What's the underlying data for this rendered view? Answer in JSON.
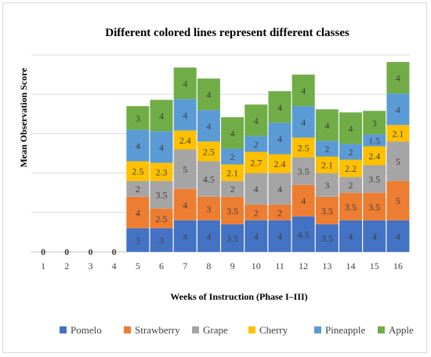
{
  "chart_data": {
    "type": "bar",
    "stacked": true,
    "title": "Different colored lines represent different classes",
    "xlabel": "Weeks of Instruction (Phase I–III)",
    "ylabel": "Mean Observation Score",
    "categories": [
      "1",
      "2",
      "3",
      "4",
      "5",
      "6",
      "7",
      "8",
      "9",
      "10",
      "11",
      "12",
      "13",
      "14",
      "15",
      "16"
    ],
    "ylim": [
      0,
      25
    ],
    "grid": true,
    "y_tick_labels_shown": false,
    "legend_position": "bottom",
    "series": [
      {
        "name": "Pomelo",
        "color": "#4472C4",
        "values": [
          0,
          0,
          0,
          0,
          3,
          3,
          4,
          4,
          3.5,
          4,
          4,
          4.5,
          3.5,
          4,
          4,
          4
        ],
        "labels": [
          "0",
          "0",
          "0",
          "0",
          "3",
          "3",
          "4",
          "4",
          "3.5",
          "4",
          "4",
          "4.5",
          "3.5",
          "4",
          "4",
          "4"
        ]
      },
      {
        "name": "Strawberry",
        "color": "#ED7D31",
        "values": [
          0,
          0,
          0,
          0,
          4,
          2.5,
          4,
          3,
          3.5,
          2,
          2,
          4,
          3.5,
          3.5,
          3.5,
          5
        ],
        "labels": [
          "",
          "",
          "",
          "",
          "4",
          "2.5",
          "4",
          "3",
          "3.5",
          "2",
          "2",
          "4",
          "3.5",
          "3.5",
          "3.5",
          "5"
        ]
      },
      {
        "name": "Grape",
        "color": "#A5A5A5",
        "values": [
          0,
          0,
          0,
          0,
          2,
          3.5,
          5,
          4.5,
          2,
          4,
          4,
          3.5,
          3,
          2,
          3.5,
          5
        ],
        "labels": [
          "",
          "",
          "",
          "",
          "2",
          "3.5",
          "5",
          "4.5",
          "2",
          "4",
          "4",
          "3.5",
          "3",
          "2",
          "3.5",
          "5"
        ]
      },
      {
        "name": "Cherry",
        "color": "#FFC000",
        "values": [
          0,
          0,
          0,
          0,
          2.5,
          2.3,
          2.4,
          2.5,
          2.1,
          2.7,
          2.4,
          2.5,
          2.1,
          2.2,
          2.4,
          2.1
        ],
        "labels": [
          "",
          "",
          "",
          "",
          "2.5",
          "2.3",
          "2.4",
          "2.5",
          "2.1",
          "2.7",
          "2.4",
          "2.5",
          "2.1",
          "2.2",
          "2.4",
          "2.1"
        ]
      },
      {
        "name": "Pineapple",
        "color": "#5B9BD5",
        "values": [
          0,
          0,
          0,
          0,
          4,
          4,
          4,
          4,
          2,
          2,
          4,
          4,
          2,
          2,
          1.5,
          4
        ],
        "labels": [
          "",
          "",
          "",
          "",
          "4",
          "4",
          "4",
          "4",
          "2",
          "2",
          "4",
          "4",
          "2",
          "2",
          "1.5",
          "4"
        ]
      },
      {
        "name": "Apple",
        "color": "#70AD47",
        "values": [
          0,
          0,
          0,
          0,
          3,
          4,
          4,
          4,
          4,
          4,
          4,
          4,
          4,
          4,
          3,
          4
        ],
        "labels": [
          "",
          "",
          "",
          "",
          "3",
          "4",
          "4",
          "4",
          "4",
          "4",
          "4",
          "4",
          "4",
          "4",
          "3",
          "4"
        ]
      }
    ]
  }
}
